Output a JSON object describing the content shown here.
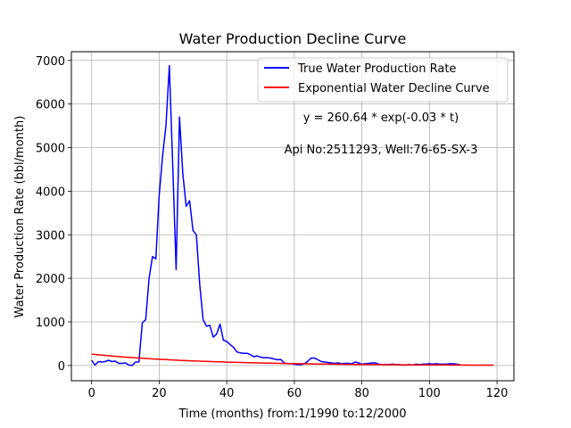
{
  "chart_data": {
    "type": "line",
    "title": "Water Production Decline Curve",
    "xlabel": "Time (months) from:1/1990 to:12/2000",
    "ylabel": "Water Production Rate (bbl/month)",
    "xlim": [
      -6,
      125
    ],
    "ylim": [
      -350,
      7200
    ],
    "grid": true,
    "legend_position": "top-right",
    "x_ticks": [
      0,
      20,
      40,
      60,
      80,
      100,
      120
    ],
    "y_ticks": [
      0,
      1000,
      2000,
      3000,
      4000,
      5000,
      6000,
      7000
    ],
    "x_tick_labels": [
      "0",
      "20",
      "40",
      "60",
      "80",
      "100",
      "120"
    ],
    "y_tick_labels": [
      "0",
      "1000",
      "2000",
      "3000",
      "4000",
      "5000",
      "6000",
      "7000"
    ],
    "annotations": [
      {
        "text": "y = 260.64 * exp(-0.03 * t)"
      },
      {
        "text": "Api No:2511293, Well:76-65-SX-3"
      }
    ],
    "series": [
      {
        "name": "True Water Production Rate",
        "color": "#0000ff",
        "x": [
          0,
          1,
          2,
          3,
          4,
          5,
          6,
          7,
          8,
          9,
          10,
          11,
          12,
          13,
          14,
          15,
          16,
          17,
          18,
          19,
          20,
          21,
          22,
          23,
          24,
          25,
          26,
          27,
          28,
          29,
          30,
          31,
          32,
          33,
          34,
          35,
          36,
          37,
          38,
          39,
          40,
          41,
          42,
          43,
          44,
          45,
          46,
          47,
          48,
          49,
          50,
          51,
          52,
          53,
          54,
          55,
          56,
          57,
          58,
          59,
          60,
          61,
          62,
          63,
          64,
          65,
          66,
          67,
          68,
          69,
          70,
          71,
          72,
          73,
          74,
          75,
          76,
          77,
          78,
          79,
          80,
          81,
          82,
          83,
          84,
          85,
          86,
          87,
          88,
          89,
          90,
          91,
          92,
          93,
          94,
          95,
          96,
          97,
          98,
          99,
          100,
          101,
          102,
          103,
          104,
          105,
          106,
          107,
          108,
          109
        ],
        "y": [
          120,
          10,
          90,
          80,
          90,
          120,
          90,
          100,
          50,
          50,
          60,
          10,
          0,
          80,
          80,
          980,
          1050,
          2000,
          2500,
          2450,
          3900,
          4800,
          5500,
          6880,
          4600,
          2200,
          5700,
          4400,
          3650,
          3780,
          3100,
          3000,
          1850,
          1050,
          900,
          920,
          650,
          720,
          950,
          580,
          550,
          480,
          420,
          310,
          290,
          280,
          280,
          250,
          200,
          220,
          190,
          180,
          180,
          170,
          150,
          130,
          140,
          60,
          40,
          40,
          30,
          20,
          20,
          40,
          100,
          170,
          170,
          130,
          90,
          80,
          70,
          60,
          50,
          60,
          40,
          50,
          50,
          40,
          80,
          60,
          30,
          40,
          50,
          60,
          60,
          30,
          20,
          20,
          20,
          30,
          20,
          20,
          10,
          10,
          20,
          10,
          30,
          20,
          30,
          30,
          40,
          30,
          40,
          30,
          30,
          30,
          40,
          40,
          30,
          20
        ]
      },
      {
        "name": "Exponential Water Decline Curve",
        "color": "#ff0000",
        "fit": {
          "a": 260.64,
          "b": -0.03,
          "t_start": 0,
          "t_end": 119
        }
      }
    ]
  }
}
